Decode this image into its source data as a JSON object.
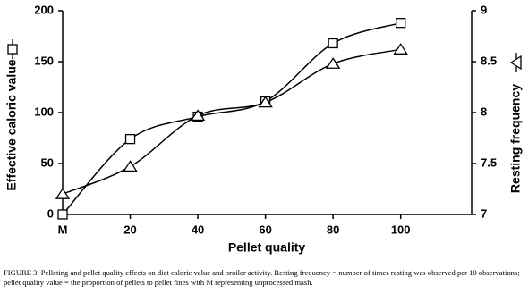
{
  "chart_data": {
    "type": "line",
    "xlabel": "Pellet quality",
    "x": [
      0,
      20,
      40,
      60,
      80,
      100
    ],
    "xlim": [
      0,
      121
    ],
    "xticks": [
      {
        "value": 0,
        "label": "M"
      },
      20,
      40,
      60,
      80,
      100
    ],
    "ylim": [
      0,
      200
    ],
    "yticks": [
      0,
      50,
      100,
      150,
      200
    ],
    "y2lim": [
      7,
      9
    ],
    "y2ticks": [
      7,
      7.5,
      8,
      8.5,
      9
    ],
    "series": [
      {
        "name": "Effective caloric value",
        "color": "#000000",
        "marker": "square",
        "values": [
          0,
          74,
          96,
          111,
          168,
          188
        ]
      },
      {
        "name": "Resting frequency",
        "color": "#000000",
        "marker": "triangle",
        "axis": "y2",
        "values": [
          7.2,
          7.47,
          7.97,
          8.1,
          8.48,
          8.62
        ]
      }
    ],
    "caption": "FIGURE 3. Pelleting and pellet quality effects on diet caloric value and broiler activity. Resting frequency = number of times resting was observed per 10 observations; pellet quality value = the proportion of pellets to pellet fines with M representing unprocessed mash."
  }
}
